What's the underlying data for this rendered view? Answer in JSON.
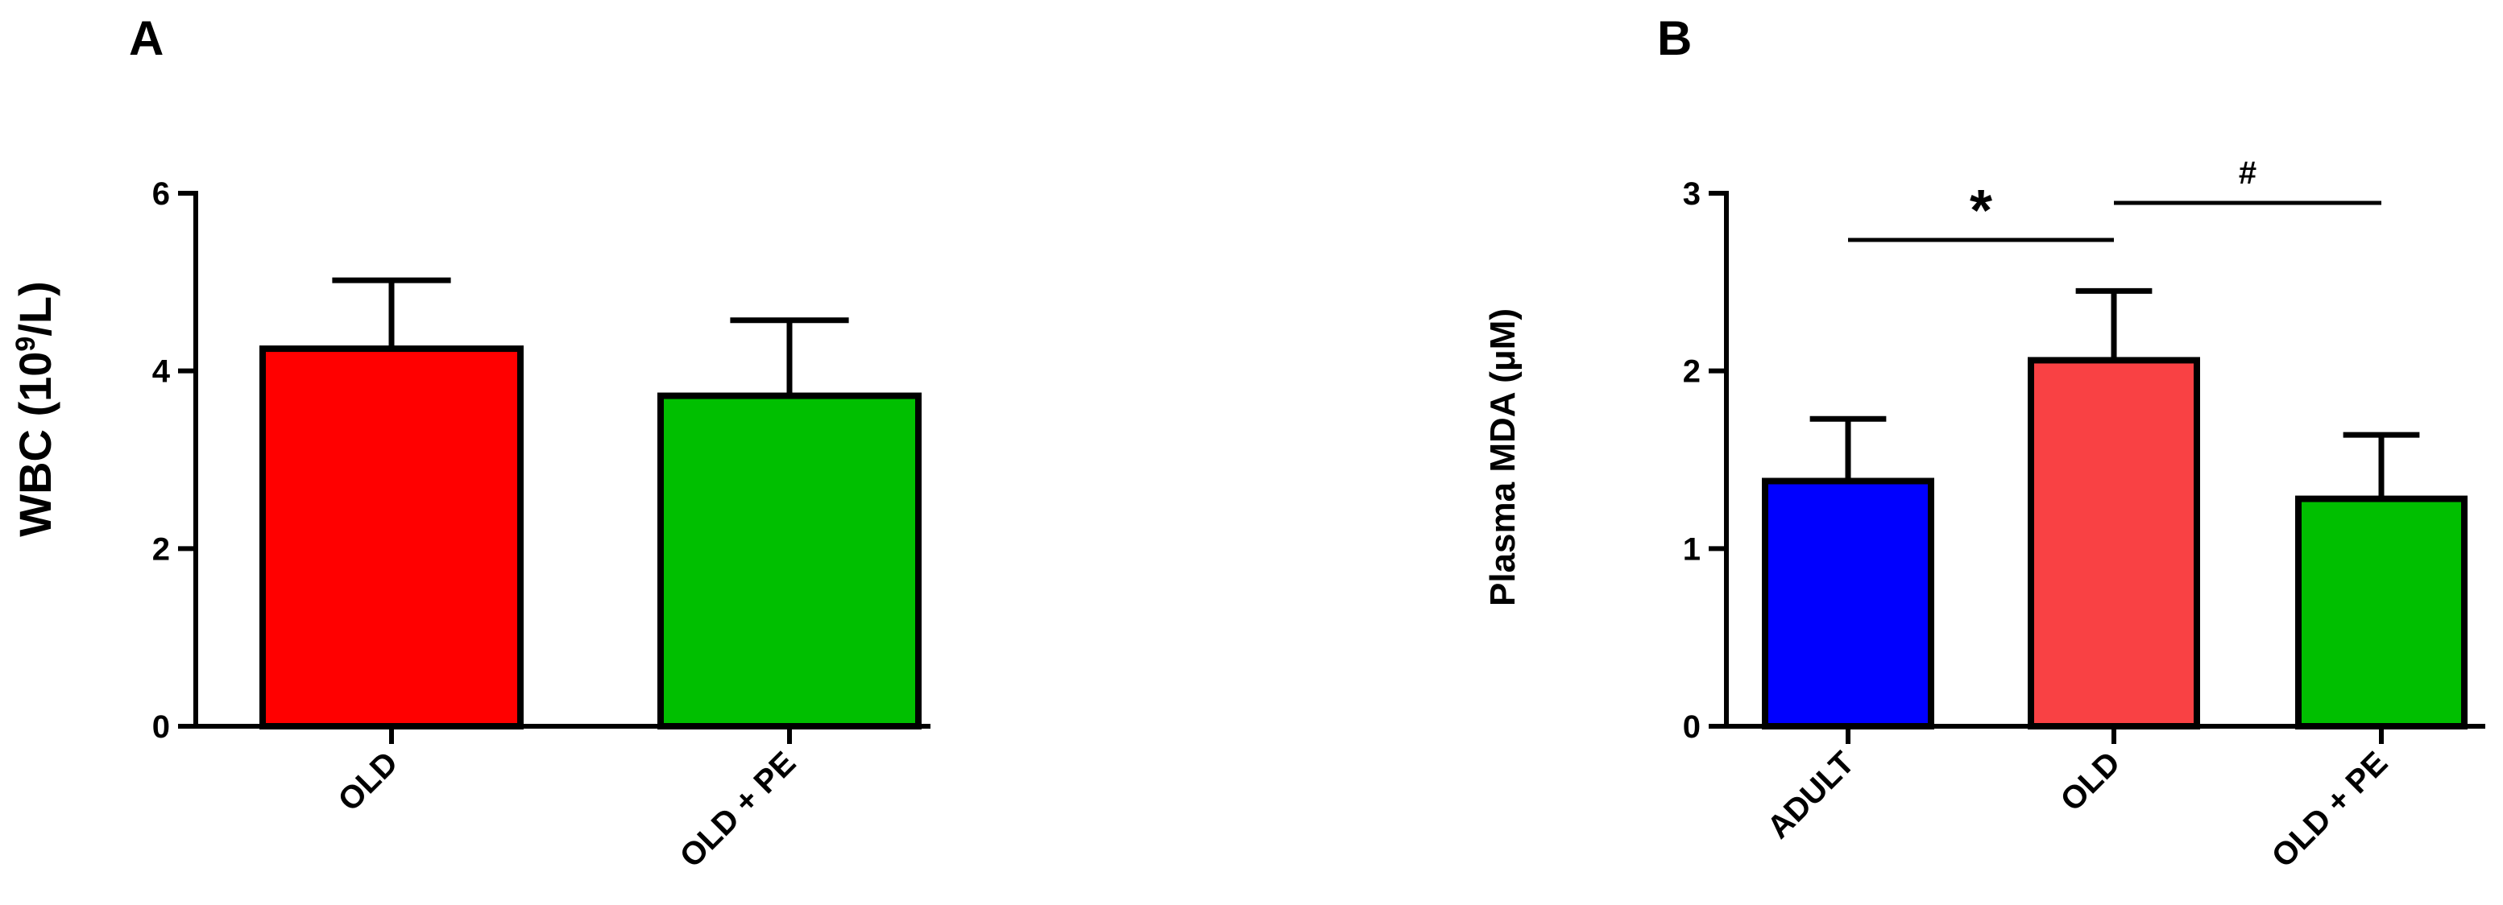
{
  "colors": {
    "red": "#ff0000",
    "salmon": "#f94144",
    "green": "#00bf00",
    "blue": "#0000ff",
    "stroke": "#000000"
  },
  "chart_data": [
    {
      "type": "bar",
      "panel": "A",
      "ylabel": "WBC (10",
      "ylabel_sup": "9",
      "ylabel_suffix": "/L)",
      "ylim": [
        0,
        6
      ],
      "yticks": [
        0,
        2,
        4,
        6
      ],
      "categories": [
        "OLD",
        "OLD + PE"
      ],
      "values": [
        4.25,
        3.72
      ],
      "errors": [
        0.77,
        0.85
      ],
      "bar_colors": [
        "#ff0000",
        "#00bf00"
      ]
    },
    {
      "type": "bar",
      "panel": "B",
      "ylabel": "Plasma MDA (",
      "ylabel_mu": "μ",
      "ylabel_suffix": "M)",
      "ylim": [
        0,
        3
      ],
      "yticks": [
        0,
        1,
        2,
        3
      ],
      "categories": [
        "ADULT",
        "OLD",
        "OLD + PE"
      ],
      "values": [
        1.38,
        2.06,
        1.28
      ],
      "errors": [
        0.35,
        0.39,
        0.36
      ],
      "bar_colors": [
        "#0000ff",
        "#f94144",
        "#00bf00"
      ],
      "significance": [
        {
          "from": 0,
          "to": 1,
          "symbol": "*"
        },
        {
          "from": 1,
          "to": 2,
          "symbol": "#"
        }
      ]
    }
  ]
}
